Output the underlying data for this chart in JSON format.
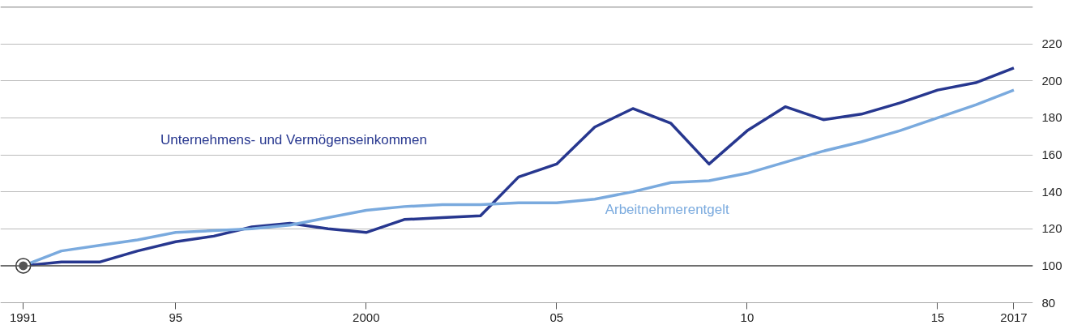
{
  "chart_data": {
    "type": "line",
    "x": [
      1991,
      1992,
      1993,
      1994,
      1995,
      1996,
      1997,
      1998,
      1999,
      2000,
      2001,
      2002,
      2003,
      2004,
      2005,
      2006,
      2007,
      2008,
      2009,
      2010,
      2011,
      2012,
      2013,
      2014,
      2015,
      2016,
      2017
    ],
    "series": [
      {
        "name": "Unternehmens- und Vermögenseinkommen",
        "color": "#27378f",
        "values": [
          100,
          102,
          102,
          108,
          113,
          116,
          121,
          123,
          120,
          118,
          125,
          126,
          127,
          148,
          155,
          175,
          185,
          177,
          155,
          173,
          186,
          179,
          182,
          188,
          195,
          199,
          207
        ]
      },
      {
        "name": "Arbeitnehmerentgelt",
        "color": "#7aaade",
        "values": [
          100,
          108,
          111,
          114,
          118,
          119,
          120,
          122,
          126,
          130,
          132,
          133,
          133,
          134,
          134,
          136,
          140,
          145,
          146,
          150,
          156,
          162,
          167,
          173,
          180,
          187,
          195
        ]
      },
      {
        "type": "scatter",
        "marker": "circle",
        "color": "#555555",
        "x": [
          1991
        ],
        "values": [
          100
        ]
      }
    ],
    "xlim": [
      1990.4,
      2017.5
    ],
    "ylim": [
      80,
      240
    ],
    "xticks": [
      {
        "value": 1991,
        "label": "1991"
      },
      {
        "value": 1995,
        "label": "95"
      },
      {
        "value": 2000,
        "label": "2000"
      },
      {
        "value": 2005,
        "label": "05"
      },
      {
        "value": 2010,
        "label": "10"
      },
      {
        "value": 2015,
        "label": "15"
      },
      {
        "value": 2017,
        "label": "2017"
      }
    ],
    "yticks": [
      80,
      100,
      120,
      140,
      160,
      180,
      200,
      220
    ],
    "ref_lines": [
      {
        "axis": "y",
        "value": 100,
        "color": "#555555"
      }
    ],
    "grid": "y",
    "marker": "none",
    "line_style": "solid"
  }
}
